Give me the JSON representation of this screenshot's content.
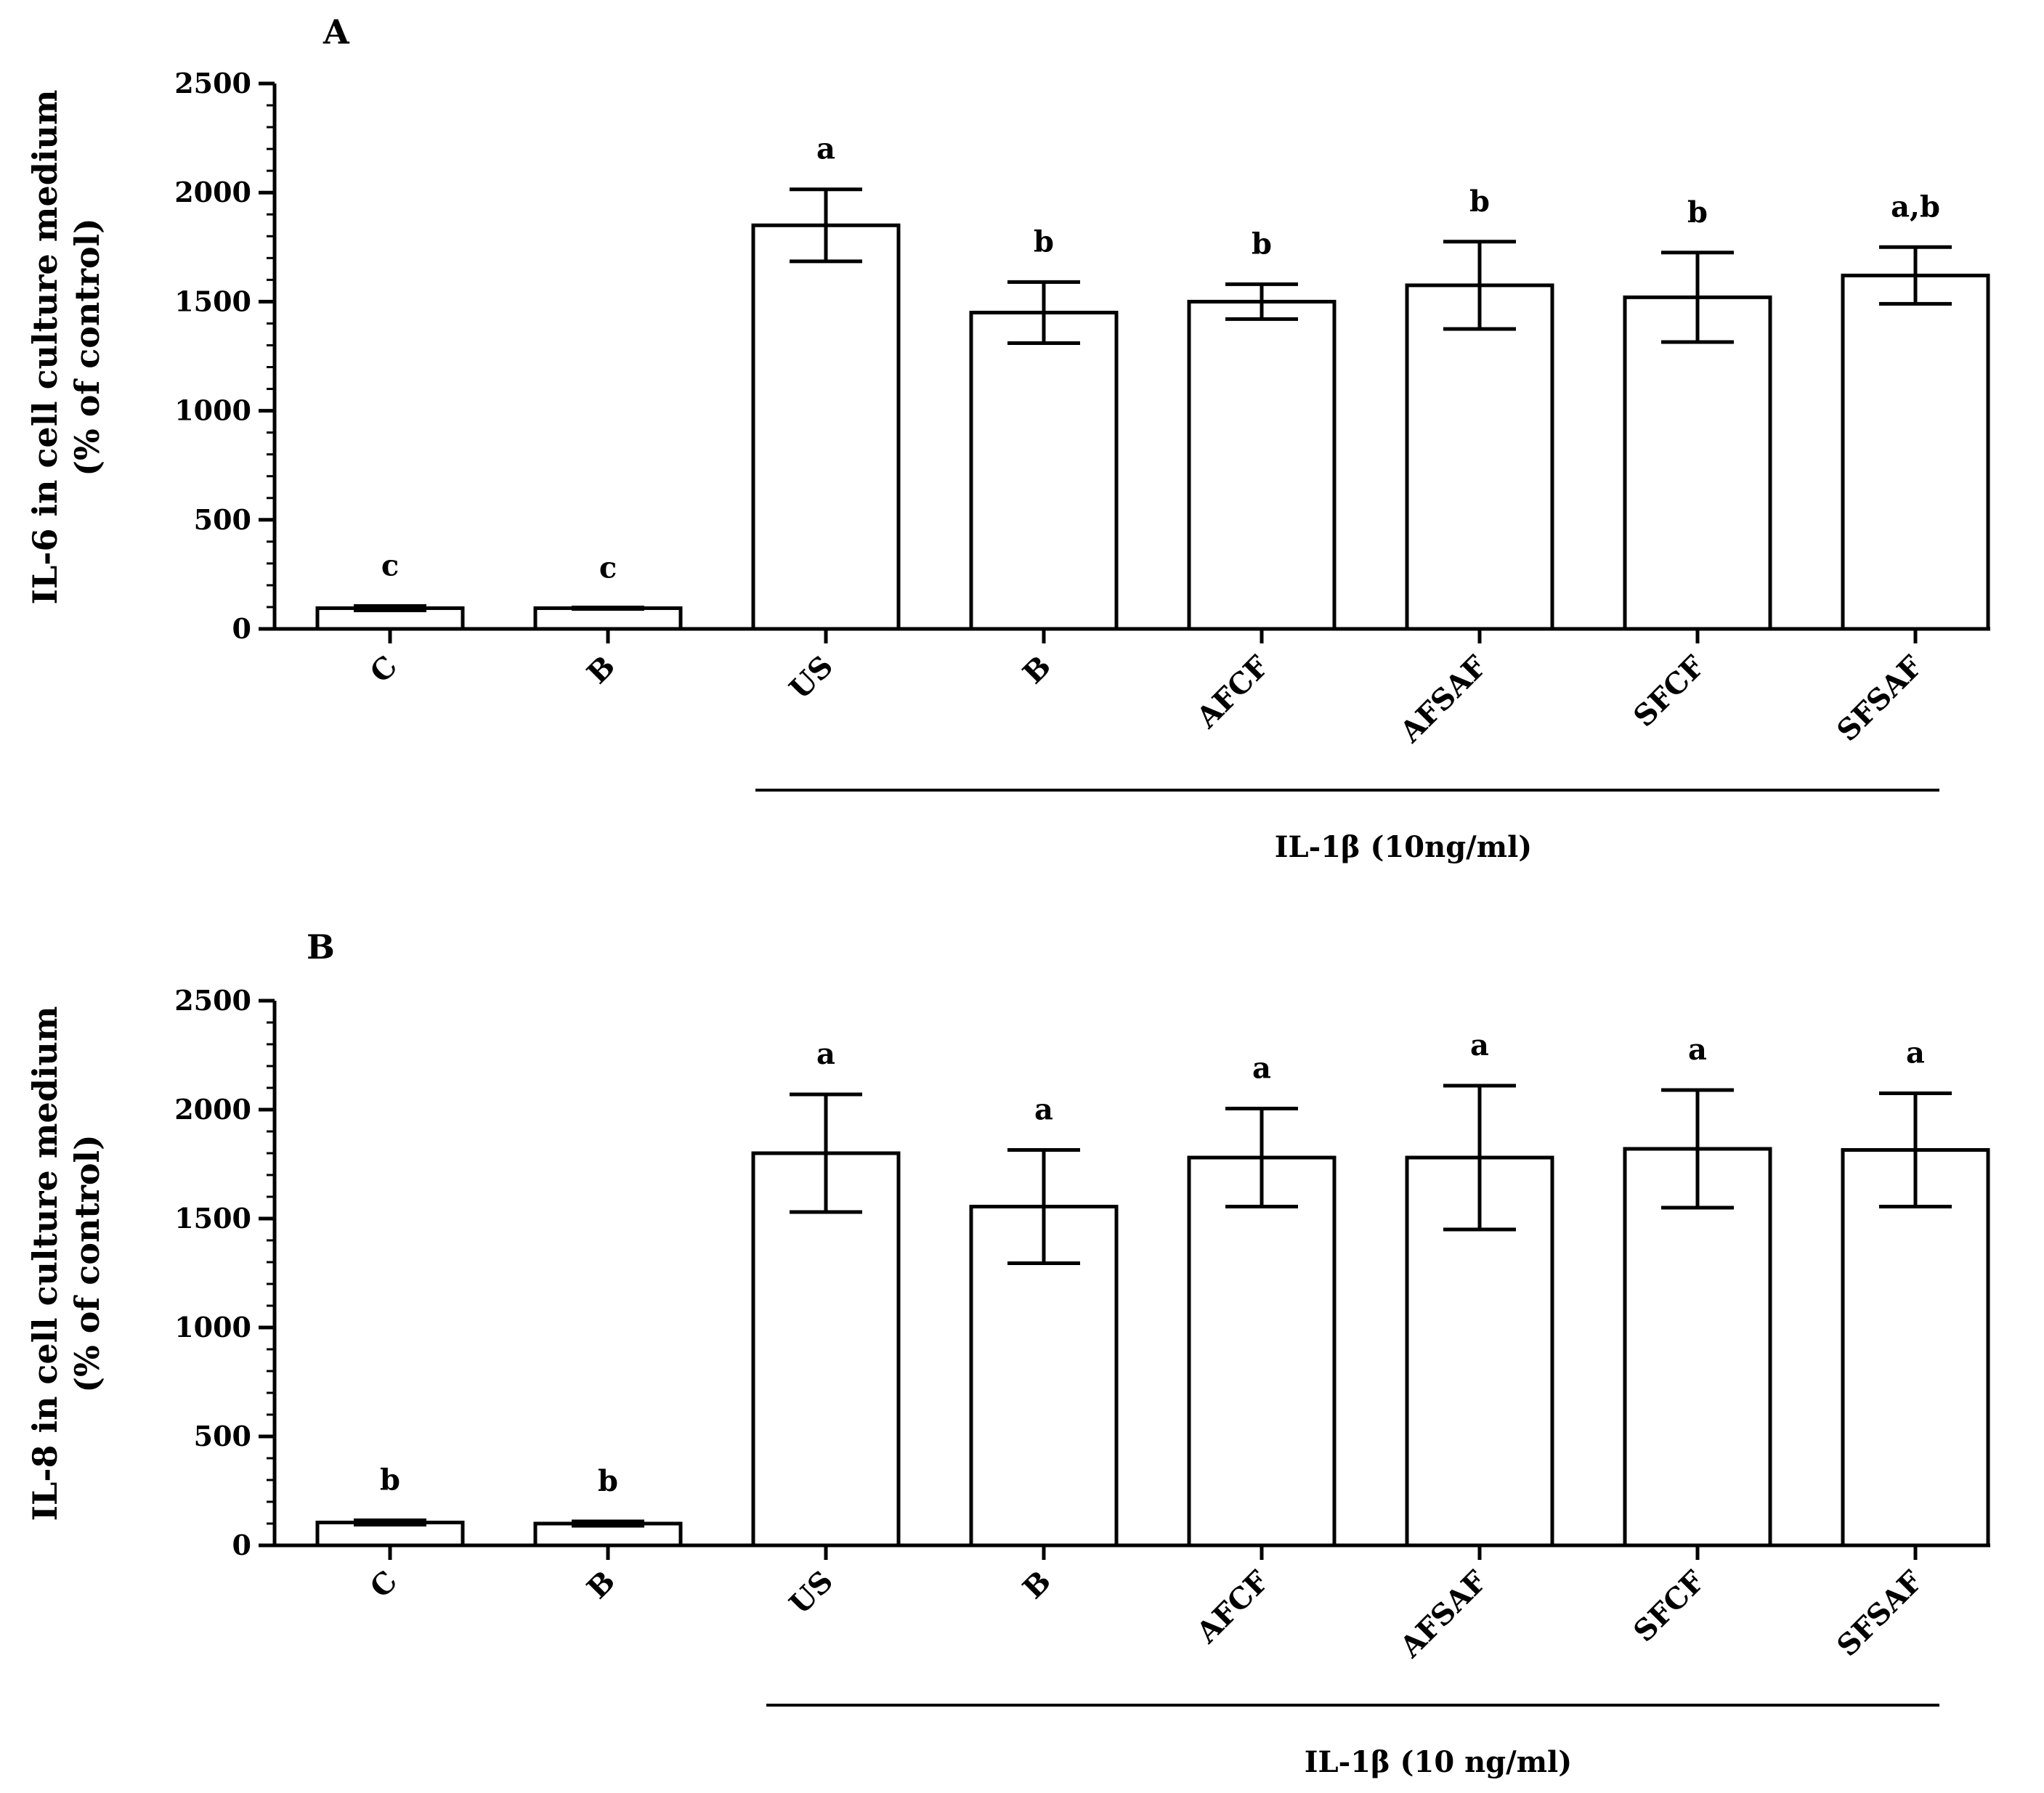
{
  "chart_data": [
    {
      "type": "bar",
      "panel_label": "A",
      "categories": [
        "C",
        "B",
        "US",
        "B",
        "AFCF",
        "AFSAF",
        "SFCF",
        "SFSAF"
      ],
      "values": [
        95,
        95,
        1850,
        1450,
        1500,
        1575,
        1520,
        1620
      ],
      "error": [
        10,
        0,
        165,
        140,
        80,
        200,
        205,
        130
      ],
      "significance": [
        "c",
        "c",
        "a",
        "b",
        "b",
        "b",
        "b",
        "a,b"
      ],
      "ylabel_line1": "IL-6 in cell culture medium",
      "ylabel_line2": "(% of control)",
      "ylim": [
        0,
        2500
      ],
      "yticks": [
        "0",
        "500",
        "1000",
        "1500",
        "2000",
        "2500"
      ],
      "group_label": "IL-1β (10ng/ml)",
      "group_start_index": 2,
      "group_end_index": 7
    },
    {
      "type": "bar",
      "panel_label": "B",
      "categories": [
        "C",
        "B",
        "US",
        "B",
        "AFCF",
        "AFSAF",
        "SFCF",
        "SFSAF"
      ],
      "values": [
        105,
        100,
        1800,
        1555,
        1780,
        1780,
        1820,
        1815
      ],
      "error": [
        10,
        10,
        270,
        260,
        225,
        330,
        270,
        260
      ],
      "significance": [
        "b",
        "b",
        "a",
        "a",
        "a",
        "a",
        "a",
        "a"
      ],
      "ylabel_line1": "IL-8 in cell culture medium",
      "ylabel_line2": "(% of control)",
      "ylim": [
        0,
        2500
      ],
      "yticks": [
        "0",
        "500",
        "1000",
        "1500",
        "2000",
        "2500"
      ],
      "group_label": "IL-1β (10 ng/ml)",
      "group_start_index": 2,
      "group_end_index": 7
    }
  ]
}
